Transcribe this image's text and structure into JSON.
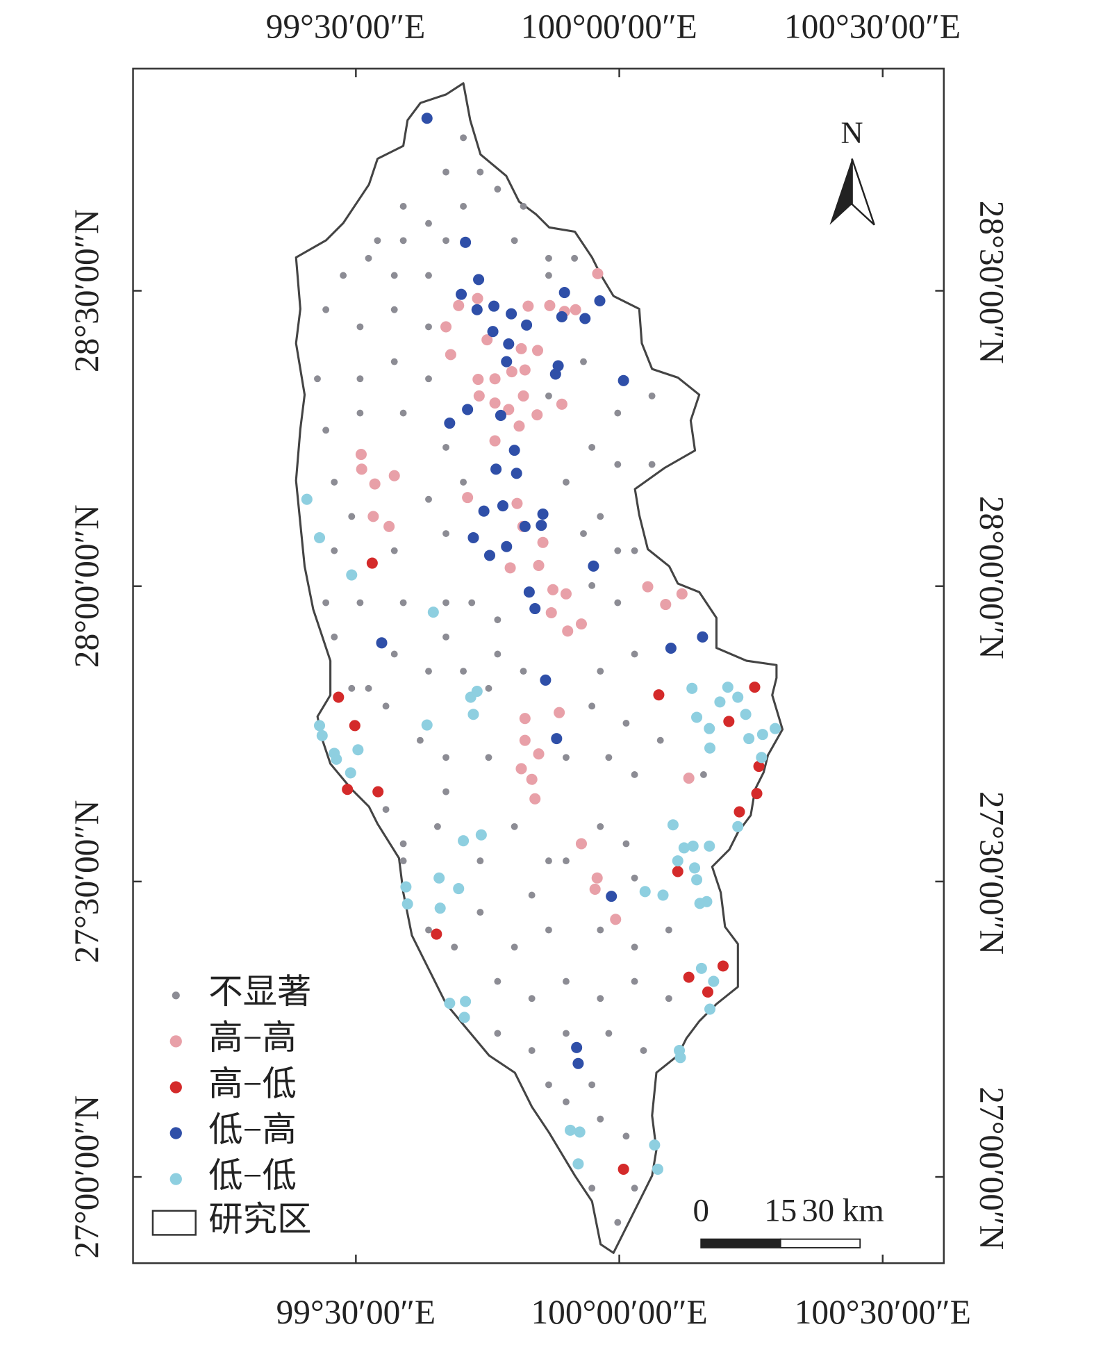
{
  "map": {
    "type": "scatter-map",
    "xlim": [
      99.077,
      100.616
    ],
    "ylim": [
      26.854,
      28.876
    ],
    "xticks": [
      {
        "value": 99.5,
        "label": "99°30′00″E"
      },
      {
        "value": 100,
        "label": "100°00′00″E"
      },
      {
        "value": 100.5,
        "label": "100°30′00″E"
      }
    ],
    "yticks": [
      {
        "value": 27,
        "label": "27°00′00″N"
      },
      {
        "value": 27.5,
        "label": "27°30′00″N"
      },
      {
        "value": 28,
        "label": "28°00′00″N"
      },
      {
        "value": 28.5,
        "label": "28°30′00″N"
      }
    ],
    "north": "N",
    "boundary_legend": "研究区",
    "scale_bar": {
      "ticks": [
        0,
        15,
        {
          "value": 30,
          "label": "30 km"
        }
      ]
    },
    "series": [
      {
        "name": "不显著",
        "color": "#8c8c94",
        "x": [
          99.704,
          99.671,
          99.736,
          99.769,
          99.818,
          99.59,
          99.638,
          99.704,
          99.541,
          99.59,
          99.671,
          99.801,
          99.866,
          99.915,
          99.476,
          99.524,
          99.573,
          99.638,
          99.443,
          99.508,
          99.573,
          99.638,
          99.866,
          99.932,
          99.427,
          99.508,
          99.573,
          99.638,
          99.866,
          99.997,
          100.062,
          99.443,
          99.508,
          99.59,
          99.671,
          99.948,
          99.997,
          100.062,
          99.459,
          99.638,
          99.704,
          99.899,
          99.964,
          100.029,
          99.492,
          99.459,
          99.573,
          99.671,
          99.932,
          99.997,
          99.443,
          99.508,
          99.59,
          99.671,
          99.72,
          99.769,
          99.948,
          99.997,
          99.459,
          99.573,
          99.671,
          99.769,
          99.818,
          99.964,
          100.029,
          99.492,
          99.524,
          99.557,
          99.638,
          99.704,
          99.752,
          99.948,
          100.013,
          100.078,
          99.622,
          99.671,
          99.752,
          99.899,
          99.98,
          100.029,
          100.16,
          99.557,
          99.59,
          99.655,
          99.671,
          99.801,
          99.866,
          99.964,
          100.013,
          99.59,
          99.736,
          99.834,
          99.899,
          100.029,
          99.638,
          99.736,
          99.801,
          99.866,
          99.964,
          100.029,
          100.094,
          99.687,
          99.769,
          99.834,
          99.899,
          99.964,
          100.029,
          100.094,
          99.769,
          99.834,
          99.899,
          99.98,
          100.046,
          99.866,
          99.948,
          99.899,
          99.964,
          100.013,
          99.948,
          99.997,
          100.029
        ],
        "y": [
          28.759,
          28.701,
          28.701,
          28.672,
          28.643,
          28.643,
          28.614,
          28.643,
          28.585,
          28.585,
          28.585,
          28.585,
          28.555,
          28.555,
          28.526,
          28.555,
          28.526,
          28.526,
          28.468,
          28.439,
          28.468,
          28.439,
          28.526,
          28.38,
          28.351,
          28.351,
          28.38,
          28.351,
          28.322,
          28.293,
          28.322,
          28.264,
          28.293,
          28.293,
          28.235,
          28.235,
          28.206,
          28.206,
          28.176,
          28.147,
          28.176,
          28.176,
          28.118,
          28.06,
          28.118,
          28.06,
          28.06,
          28.089,
          28.089,
          28.06,
          27.972,
          27.972,
          27.972,
          27.972,
          27.972,
          27.943,
          28.001,
          27.972,
          27.914,
          27.885,
          27.914,
          27.885,
          27.856,
          27.856,
          27.885,
          27.827,
          27.827,
          27.797,
          27.856,
          27.856,
          27.827,
          27.797,
          27.768,
          27.739,
          27.739,
          27.71,
          27.71,
          27.71,
          27.71,
          27.681,
          27.681,
          27.622,
          27.564,
          27.593,
          27.652,
          27.593,
          27.535,
          27.593,
          27.564,
          27.535,
          27.535,
          27.477,
          27.535,
          27.506,
          27.418,
          27.448,
          27.389,
          27.418,
          27.418,
          27.389,
          27.418,
          27.389,
          27.331,
          27.302,
          27.331,
          27.302,
          27.331,
          27.302,
          27.243,
          27.214,
          27.243,
          27.243,
          27.214,
          27.156,
          27.156,
          27.127,
          27.098,
          27.069,
          26.981,
          26.923,
          26.981
        ]
      },
      {
        "name": "高−高",
        "color": "#e8a0a8",
        "x": [
          99.959,
          99.671,
          99.695,
          99.731,
          99.827,
          99.868,
          99.896,
          99.917,
          99.68,
          99.749,
          99.814,
          99.845,
          99.732,
          99.764,
          99.796,
          99.821,
          99.734,
          99.764,
          99.79,
          99.818,
          99.844,
          99.891,
          99.81,
          99.764,
          99.51,
          99.511,
          99.573,
          99.536,
          99.533,
          99.563,
          99.712,
          99.806,
          99.817,
          99.855,
          99.793,
          99.847,
          99.874,
          99.899,
          99.871,
          99.928,
          99.902,
          100.054,
          100.119,
          100.088,
          99.821,
          99.886,
          99.821,
          99.847,
          99.814,
          99.834,
          99.84,
          100.132,
          99.928,
          99.958,
          99.954,
          99.993
        ],
        "y": [
          28.529,
          28.439,
          28.475,
          28.487,
          28.474,
          28.475,
          28.465,
          28.468,
          28.392,
          28.417,
          28.402,
          28.399,
          28.35,
          28.351,
          28.363,
          28.366,
          28.322,
          28.31,
          28.299,
          28.322,
          28.29,
          28.308,
          28.271,
          28.246,
          28.223,
          28.198,
          28.187,
          28.173,
          28.118,
          28.101,
          28.15,
          28.14,
          28.101,
          28.074,
          28.031,
          28.035,
          27.994,
          27.987,
          27.955,
          27.936,
          27.924,
          27.999,
          27.987,
          27.969,
          27.776,
          27.786,
          27.739,
          27.716,
          27.691,
          27.673,
          27.64,
          27.675,
          27.564,
          27.506,
          27.487,
          27.436
        ]
      },
      {
        "name": "高−低",
        "color": "#d42a2a",
        "x": [
          99.531,
          99.467,
          99.498,
          99.484,
          99.542,
          99.653,
          100.075,
          100.257,
          100.208,
          100.265,
          100.261,
          100.228,
          100.111,
          100.132,
          100.197,
          100.168,
          100.008
        ],
        "y": [
          28.039,
          27.812,
          27.764,
          27.656,
          27.652,
          27.411,
          27.816,
          27.829,
          27.771,
          27.695,
          27.649,
          27.618,
          27.517,
          27.338,
          27.357,
          27.313,
          27.013
        ]
      },
      {
        "name": "低−高",
        "color": "#2f4fa8",
        "x": [
          99.635,
          99.708,
          99.733,
          99.7,
          99.73,
          99.762,
          99.795,
          99.824,
          99.76,
          99.79,
          99.896,
          99.891,
          99.935,
          99.963,
          99.884,
          99.879,
          99.786,
          100.008,
          99.712,
          99.678,
          99.775,
          99.801,
          99.766,
          99.805,
          99.779,
          99.743,
          99.855,
          99.821,
          99.852,
          99.723,
          99.786,
          99.754,
          99.951,
          99.829,
          99.84,
          99.549,
          100.098,
          100.158,
          99.86,
          99.881,
          99.985,
          99.919,
          99.922
        ],
        "y": [
          28.792,
          28.582,
          28.519,
          28.494,
          28.468,
          28.474,
          28.461,
          28.442,
          28.431,
          28.41,
          28.497,
          28.456,
          28.453,
          28.483,
          28.373,
          28.359,
          28.38,
          28.348,
          28.299,
          28.276,
          28.289,
          28.23,
          28.198,
          28.191,
          28.136,
          28.127,
          28.122,
          28.101,
          28.103,
          28.082,
          28.067,
          28.052,
          28.034,
          27.99,
          27.962,
          27.904,
          27.895,
          27.914,
          27.841,
          27.742,
          27.475,
          27.219,
          27.192
        ]
      },
      {
        "name": "低−低",
        "color": "#8ecfe0",
        "x": [
          99.407,
          99.431,
          99.492,
          99.647,
          99.73,
          99.718,
          99.723,
          99.635,
          99.431,
          99.436,
          99.459,
          99.504,
          99.49,
          99.463,
          99.704,
          99.738,
          99.595,
          99.598,
          99.658,
          99.695,
          99.66,
          99.678,
          99.708,
          99.706,
          100.138,
          100.206,
          100.225,
          100.191,
          100.147,
          100.171,
          100.24,
          100.246,
          100.272,
          100.296,
          100.27,
          100.172,
          100.102,
          100.225,
          100.123,
          100.14,
          100.171,
          100.111,
          100.143,
          100.147,
          100.049,
          100.083,
          100.153,
          100.166,
          100.156,
          100.179,
          100.172,
          100.114,
          100.116,
          99.907,
          99.925,
          99.922,
          100.067,
          100.073
        ],
        "y": [
          28.147,
          28.082,
          28.019,
          27.956,
          27.822,
          27.812,
          27.783,
          27.765,
          27.764,
          27.747,
          27.717,
          27.723,
          27.684,
          27.707,
          27.569,
          27.579,
          27.491,
          27.462,
          27.506,
          27.488,
          27.455,
          27.294,
          27.297,
          27.27,
          27.827,
          27.829,
          27.812,
          27.804,
          27.778,
          27.759,
          27.783,
          27.742,
          27.749,
          27.759,
          27.71,
          27.726,
          27.596,
          27.593,
          27.557,
          27.56,
          27.56,
          27.535,
          27.523,
          27.503,
          27.483,
          27.477,
          27.463,
          27.466,
          27.353,
          27.331,
          27.284,
          27.214,
          27.202,
          27.079,
          27.076,
          27.022,
          27.054,
          27.013
        ]
      }
    ]
  }
}
